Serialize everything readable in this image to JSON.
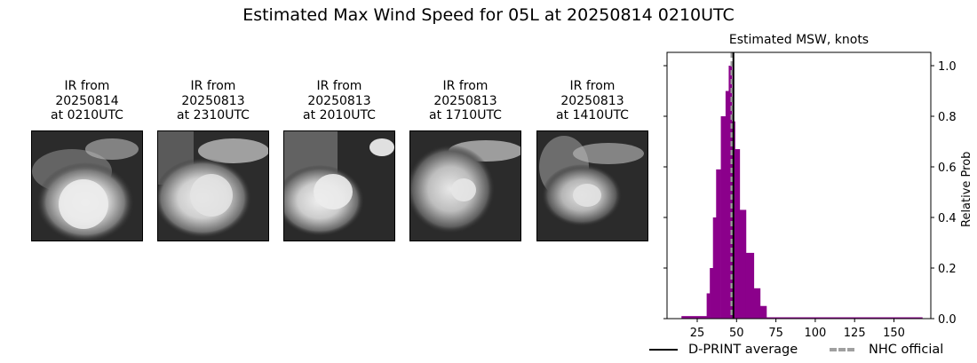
{
  "figure": {
    "suptitle": "Estimated Max Wind Speed for 05L at 20250814 0210UTC"
  },
  "panels": [
    {
      "line1": "IR from",
      "line2": "20250814",
      "line3": "at 0210UTC"
    },
    {
      "line1": "IR from",
      "line2": "20250813",
      "line3": "at 2310UTC"
    },
    {
      "line1": "IR from",
      "line2": "20250813",
      "line3": "at 2010UTC"
    },
    {
      "line1": "IR from",
      "line2": "20250813",
      "line3": "at 1710UTC"
    },
    {
      "line1": "IR from",
      "line2": "20250813",
      "line3": "at 1410UTC"
    }
  ],
  "histogram": {
    "title": "Estimated MSW, knots",
    "ylabel": "Relative Prob",
    "xticks": [
      "25",
      "50",
      "75",
      "100",
      "125",
      "150"
    ],
    "yticks": [
      "0.0",
      "0.2",
      "0.4",
      "0.6",
      "0.8",
      "1.0"
    ],
    "legend": {
      "dprint_label": "D-PRINT average",
      "nhc_label": "NHC official"
    },
    "colors": {
      "bar": "#8b008b",
      "dprint": "#000000",
      "nhc": "#a0a0a0"
    }
  },
  "chart_data": {
    "type": "bar",
    "title": "Estimated MSW, knots",
    "suptitle": "Estimated Max Wind Speed for 05L at 20250814 0210UTC",
    "xlabel": "",
    "ylabel": "Relative Prob",
    "xlim": [
      6,
      173
    ],
    "ylim": [
      0,
      1.05
    ],
    "xticks": [
      25,
      50,
      75,
      100,
      125,
      150
    ],
    "yticks": [
      0.0,
      0.2,
      0.4,
      0.6,
      0.8,
      1.0
    ],
    "y_axis_position": "right",
    "bins_left_edges_kt": [
      15,
      31,
      33,
      35,
      37,
      40,
      43,
      45,
      47,
      49,
      52,
      56,
      61,
      65,
      69
    ],
    "bins_right_edges_kt": [
      31,
      33,
      35,
      37,
      40,
      43,
      45,
      47,
      49,
      52,
      56,
      61,
      65,
      69,
      168
    ],
    "values": [
      0.01,
      0.1,
      0.2,
      0.4,
      0.59,
      0.8,
      0.9,
      1.0,
      0.78,
      0.67,
      0.43,
      0.26,
      0.12,
      0.05,
      0.005
    ],
    "vlines": [
      {
        "name": "D-PRINT average",
        "x": 48,
        "style": "solid",
        "color": "#000000"
      },
      {
        "name": "NHC official",
        "x": 47,
        "style": "dashed",
        "color": "#a0a0a0"
      }
    ],
    "legend": [
      "D-PRINT average",
      "NHC official"
    ],
    "legend_position": "below",
    "grid": false
  }
}
